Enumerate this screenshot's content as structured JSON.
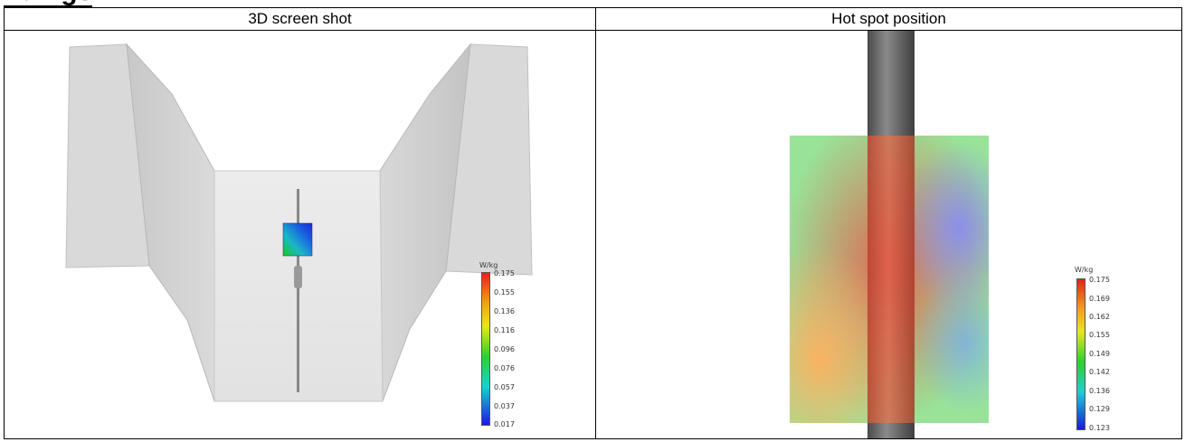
{
  "heading": "ndings",
  "columns": {
    "left": {
      "header": "3D screen shot"
    },
    "right": {
      "header": "Hot spot position"
    }
  },
  "legend_left": {
    "unit": "W/kg",
    "ticks": [
      "0.175",
      "0.155",
      "0.136",
      "0.116",
      "0.096",
      "0.076",
      "0.057",
      "0.037",
      "0.017"
    ]
  },
  "legend_right": {
    "unit": "W/kg",
    "ticks": [
      "0.175",
      "0.169",
      "0.162",
      "0.155",
      "0.149",
      "0.142",
      "0.136",
      "0.129",
      "0.123"
    ]
  },
  "colors": {
    "scale_top": "#e8201a",
    "scale_mid": "#2ed12e",
    "scale_bottom": "#1a1adf",
    "phantom_grey": "#dcdcdc",
    "rod_grey": "#666666"
  }
}
